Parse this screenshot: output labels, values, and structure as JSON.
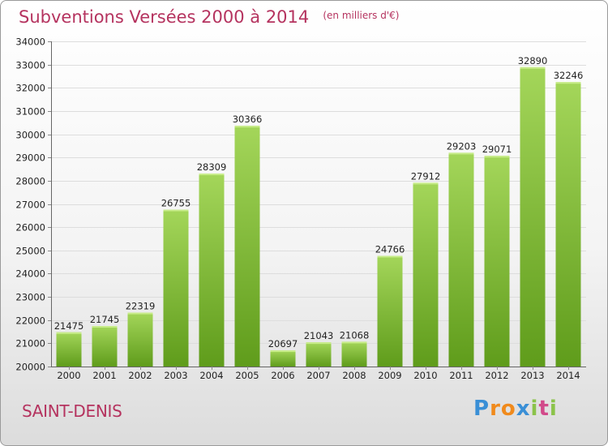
{
  "header": {
    "title": "Subventions Versées 2000 à 2014",
    "subtitle": "(en milliers d'€)"
  },
  "footer": {
    "city": "SAINT-DENIS",
    "brand_letters": [
      "P",
      "r",
      "o",
      "x",
      "i",
      "t",
      "i"
    ],
    "brand_colors": [
      "#3a8fd6",
      "#f08a1c",
      "#f08a1c",
      "#3a8fd6",
      "#8bc34a",
      "#d24a8a",
      "#8bc34a"
    ]
  },
  "colors": {
    "bar_light": "#a4d65a",
    "bar_dark": "#5f9c1b",
    "grid": "#dddddd",
    "title": "#b5335f"
  },
  "chart_data": {
    "type": "bar",
    "title": "Subventions Versées 2000 à 2014",
    "subtitle": "(en milliers d'€)",
    "categories": [
      "2000",
      "2001",
      "2002",
      "2003",
      "2004",
      "2005",
      "2006",
      "2007",
      "2008",
      "2009",
      "2010",
      "2011",
      "2012",
      "2013",
      "2014"
    ],
    "values": [
      21475,
      21745,
      22319,
      26755,
      28309,
      30366,
      20697,
      21043,
      21068,
      24766,
      27912,
      29203,
      29071,
      32890,
      32246
    ],
    "ylim": [
      20000,
      34000
    ],
    "yticks": [
      20000,
      21000,
      22000,
      23000,
      24000,
      25000,
      26000,
      27000,
      28000,
      29000,
      30000,
      31000,
      32000,
      33000,
      34000
    ],
    "grid": true,
    "data_labels": true
  }
}
